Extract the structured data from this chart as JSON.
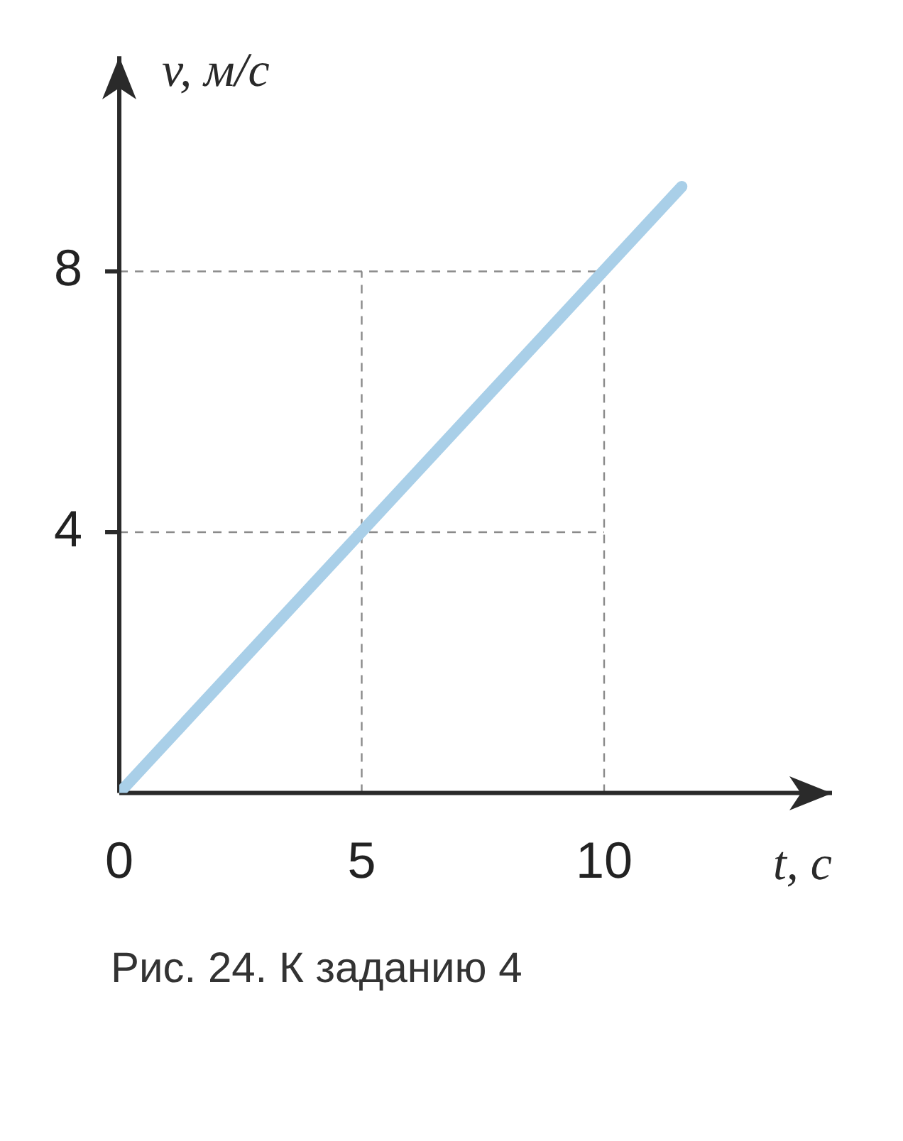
{
  "chart_data": {
    "type": "line",
    "xlabel": "t, с",
    "ylabel": "v, м/с",
    "x": [
      0,
      11.6
    ],
    "series": [
      {
        "color": "#a9cfe8",
        "values": [
          0,
          9.3
        ]
      }
    ],
    "xlim": [
      0,
      14.7
    ],
    "ylim": [
      0,
      11.3
    ],
    "xticks": [
      0,
      5,
      10
    ],
    "yticks": [
      4,
      8
    ],
    "legend": false,
    "marker": "none",
    "line_style": "solid",
    "ref_lines": [
      {
        "axis": "x",
        "value": 5,
        "color": "#8a8a8a",
        "line_style": "dashed"
      },
      {
        "axis": "x",
        "value": 10,
        "color": "#8a8a8a",
        "line_style": "dashed"
      },
      {
        "axis": "y",
        "value": 4,
        "color": "#8a8a8a",
        "line_style": "dashed"
      },
      {
        "axis": "y",
        "value": 8,
        "color": "#8a8a8a",
        "line_style": "dashed"
      }
    ],
    "annotations": [
      "Рис. 24. К заданию 4"
    ]
  }
}
